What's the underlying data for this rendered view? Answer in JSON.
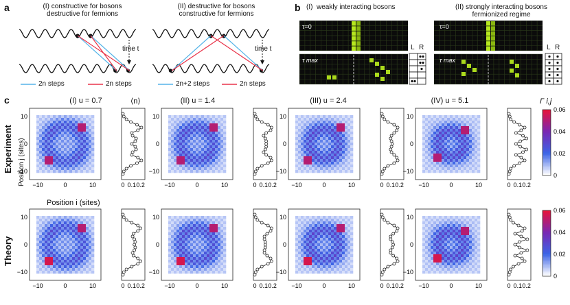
{
  "panel_a": {
    "letter": "a",
    "sub1": {
      "roman": "(I)",
      "line1": "constructive for bosons",
      "line2": "destructive for fermions",
      "time": "time t",
      "legend_blue": "2n steps",
      "legend_red": "2n steps"
    },
    "sub2": {
      "roman": "(II)",
      "line1": "destructive for bosons",
      "line2": "constructive for fermions",
      "time": "time t",
      "legend_blue": "2n+2 steps",
      "legend_red": "2n steps"
    }
  },
  "panel_b": {
    "letter": "b",
    "sub1": {
      "roman": "(I)",
      "title": "weakly interacting bosons",
      "t0": "τ=0",
      "tmax": "τ max",
      "L": "L",
      "R": "R"
    },
    "sub2": {
      "roman": "(II)",
      "title": "strongly interacting bosons",
      "title2": "fermionized regime",
      "t0": "τ=0",
      "tmax": "τ max",
      "L": "L",
      "R": "R"
    }
  },
  "panel_c": {
    "letter": "c",
    "rows": [
      "Experiment",
      "Theory"
    ],
    "column_titles": [
      "(I) u = 0.7",
      "(II) u = 1.4",
      "(III) u = 2.4",
      "(IV) u = 5.1"
    ],
    "density_label": "⟨n⟩",
    "ylabel": "Position j (sites)",
    "xlabel": "Position i (sites)",
    "colorbar_label": "Γ i,j",
    "colorbar_ticks": [
      "0.06",
      "0.04",
      "0.02",
      "0"
    ],
    "map_x_ticks": [
      "−10",
      "0",
      "10"
    ],
    "map_y_ticks": [
      "10",
      "0",
      "−10"
    ],
    "density_ticks": [
      "0",
      "0.1",
      "0.2"
    ]
  },
  "colors": {
    "blue": "#55b4e8",
    "red": "#e8344a",
    "lattice_green": "#c8ff20"
  },
  "chart_data": [
    {
      "type": "line",
      "title": "(I) u = 0.7 — Experiment ⟨n⟩",
      "xlabel": "⟨n⟩",
      "y": [
        -11,
        -10,
        -9,
        -8,
        -7,
        -6,
        -5,
        -4,
        -3,
        -2,
        -1,
        0,
        1,
        2,
        3,
        4,
        5,
        6,
        7,
        8,
        9,
        10,
        11
      ],
      "values": [
        0.0,
        0.01,
        0.04,
        0.09,
        0.16,
        0.21,
        0.17,
        0.1,
        0.11,
        0.15,
        0.14,
        0.1,
        0.14,
        0.15,
        0.11,
        0.1,
        0.17,
        0.21,
        0.16,
        0.09,
        0.04,
        0.01,
        0.0
      ]
    },
    {
      "type": "line",
      "title": "(II) u = 1.4 — Experiment ⟨n⟩",
      "xlabel": "⟨n⟩",
      "y": [
        -11,
        -10,
        -9,
        -8,
        -7,
        -6,
        -5,
        -4,
        -3,
        -2,
        -1,
        0,
        1,
        2,
        3,
        4,
        5,
        6,
        7,
        8,
        9,
        10,
        11
      ],
      "values": [
        0.0,
        0.01,
        0.03,
        0.08,
        0.15,
        0.19,
        0.18,
        0.13,
        0.1,
        0.12,
        0.13,
        0.13,
        0.13,
        0.12,
        0.1,
        0.13,
        0.18,
        0.19,
        0.15,
        0.08,
        0.03,
        0.01,
        0.0
      ]
    },
    {
      "type": "line",
      "title": "(III) u = 2.4 — Experiment ⟨n⟩",
      "xlabel": "⟨n⟩",
      "y": [
        -11,
        -10,
        -9,
        -8,
        -7,
        -6,
        -5,
        -4,
        -3,
        -2,
        -1,
        0,
        1,
        2,
        3,
        4,
        5,
        6,
        7,
        8,
        9,
        10,
        11
      ],
      "values": [
        0.0,
        0.01,
        0.03,
        0.07,
        0.14,
        0.18,
        0.17,
        0.14,
        0.11,
        0.1,
        0.11,
        0.12,
        0.11,
        0.1,
        0.11,
        0.14,
        0.17,
        0.18,
        0.14,
        0.07,
        0.03,
        0.01,
        0.0
      ]
    },
    {
      "type": "line",
      "title": "(IV) u = 5.1 — Experiment ⟨n⟩",
      "xlabel": "⟨n⟩",
      "y": [
        -11,
        -10,
        -9,
        -8,
        -7,
        -6,
        -5,
        -4,
        -3,
        -2,
        -1,
        0,
        1,
        2,
        3,
        4,
        5,
        6,
        7,
        8,
        9,
        10,
        11
      ],
      "values": [
        0.0,
        0.01,
        0.02,
        0.06,
        0.12,
        0.18,
        0.14,
        0.08,
        0.16,
        0.2,
        0.13,
        0.08,
        0.13,
        0.2,
        0.16,
        0.08,
        0.14,
        0.18,
        0.12,
        0.06,
        0.02,
        0.01,
        0.0
      ]
    },
    {
      "type": "line",
      "title": "(I) u = 0.7 — Theory ⟨n⟩",
      "xlabel": "⟨n⟩",
      "y": [
        -11,
        -10,
        -9,
        -8,
        -7,
        -6,
        -5,
        -4,
        -3,
        -2,
        -1,
        0,
        1,
        2,
        3,
        4,
        5,
        6,
        7,
        8,
        9,
        10,
        11
      ],
      "values": [
        0.0,
        0.01,
        0.04,
        0.1,
        0.17,
        0.2,
        0.17,
        0.12,
        0.11,
        0.13,
        0.14,
        0.13,
        0.14,
        0.13,
        0.11,
        0.12,
        0.17,
        0.2,
        0.17,
        0.1,
        0.04,
        0.01,
        0.0
      ]
    },
    {
      "type": "line",
      "title": "(II) u = 1.4 — Theory ⟨n⟩",
      "xlabel": "⟨n⟩",
      "y": [
        -11,
        -10,
        -9,
        -8,
        -7,
        -6,
        -5,
        -4,
        -3,
        -2,
        -1,
        0,
        1,
        2,
        3,
        4,
        5,
        6,
        7,
        8,
        9,
        10,
        11
      ],
      "values": [
        0.0,
        0.01,
        0.03,
        0.08,
        0.15,
        0.19,
        0.18,
        0.14,
        0.11,
        0.11,
        0.12,
        0.12,
        0.12,
        0.11,
        0.11,
        0.14,
        0.18,
        0.19,
        0.15,
        0.08,
        0.03,
        0.01,
        0.0
      ]
    },
    {
      "type": "line",
      "title": "(III) u = 2.4 — Theory ⟨n⟩",
      "xlabel": "⟨n⟩",
      "y": [
        -11,
        -10,
        -9,
        -8,
        -7,
        -6,
        -5,
        -4,
        -3,
        -2,
        -1,
        0,
        1,
        2,
        3,
        4,
        5,
        6,
        7,
        8,
        9,
        10,
        11
      ],
      "values": [
        0.0,
        0.01,
        0.03,
        0.07,
        0.14,
        0.18,
        0.17,
        0.13,
        0.1,
        0.1,
        0.12,
        0.13,
        0.12,
        0.1,
        0.1,
        0.13,
        0.17,
        0.18,
        0.14,
        0.07,
        0.03,
        0.01,
        0.0
      ]
    },
    {
      "type": "line",
      "title": "(IV) u = 5.1 — Theory ⟨n⟩",
      "xlabel": "⟨n⟩",
      "y": [
        -11,
        -10,
        -9,
        -8,
        -7,
        -6,
        -5,
        -4,
        -3,
        -2,
        -1,
        0,
        1,
        2,
        3,
        4,
        5,
        6,
        7,
        8,
        9,
        10,
        11
      ],
      "values": [
        0.0,
        0.01,
        0.02,
        0.05,
        0.11,
        0.18,
        0.15,
        0.07,
        0.14,
        0.21,
        0.12,
        0.07,
        0.12,
        0.21,
        0.14,
        0.07,
        0.15,
        0.18,
        0.11,
        0.05,
        0.02,
        0.01,
        0.0
      ]
    }
  ]
}
